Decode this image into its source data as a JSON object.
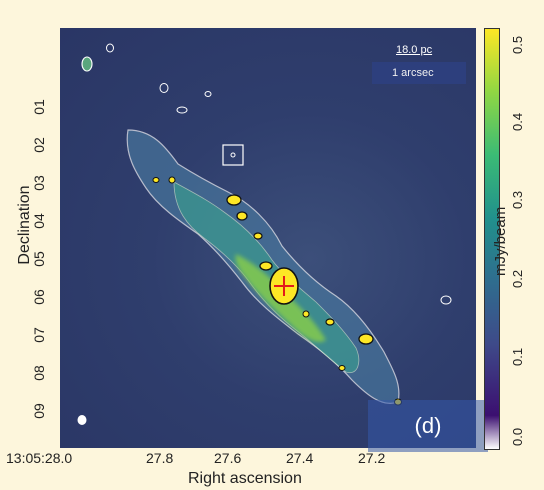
{
  "image": {
    "title": "",
    "panel_label": "(d)",
    "x_axis": {
      "label": "Right ascension",
      "ticks": [
        "13:05:28.0",
        "27.8",
        "27.6",
        "27.4",
        "27.2"
      ]
    },
    "y_axis": {
      "label": "Declination",
      "ticks": [
        "01",
        "02",
        "03",
        "04",
        "05",
        "06",
        "07",
        "08",
        "09"
      ]
    },
    "colorbar": {
      "label": "mJy/beam",
      "ticks": [
        "0.0",
        "0.1",
        "0.2",
        "0.3",
        "0.4",
        "0.5"
      ],
      "colors": [
        "#ffffff",
        "#3b0f70",
        "#3e4a89",
        "#2f6d8e",
        "#21918c",
        "#3bbb75",
        "#90d743",
        "#fde725"
      ]
    },
    "scale_bar": {
      "length_label": "18.0 pc",
      "angle_label": "1 arcsec"
    }
  }
}
